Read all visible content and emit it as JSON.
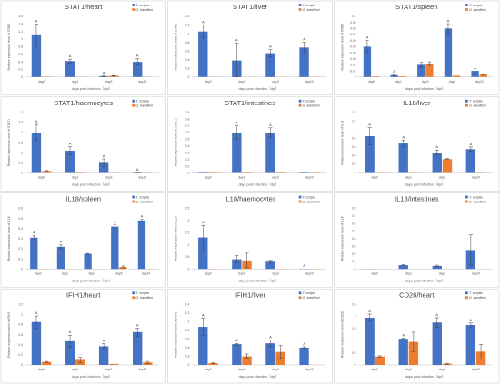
{
  "colors": [
    "#4472c4",
    "#ed7d31"
  ],
  "chart_data": [
    {
      "type": "bar",
      "title": "STAT1/heart",
      "categories": [
        "day0",
        "day1",
        "day3",
        "day10"
      ],
      "xlabel": "days post infection（dpi）",
      "ylabel": "Relative expression level of STAT1",
      "ylim": [
        0,
        1.6
      ],
      "ytick_step": 0.2,
      "grid": false,
      "legend": "top-right",
      "series": [
        {
          "name": "T. scripta",
          "values": [
            1.1,
            0.42,
            0.02,
            0.4
          ],
          "errors": [
            0.3,
            0.05,
            0.01,
            0.08
          ],
          "letters": [
            "A",
            "A",
            "A",
            "A"
          ]
        },
        {
          "name": "G. kamilinni",
          "values": [
            0.01,
            0.005,
            0.03,
            0.005
          ],
          "errors": [
            0,
            0,
            0.005,
            0
          ],
          "letters": [
            "",
            "",
            "",
            ""
          ]
        }
      ]
    },
    {
      "type": "bar",
      "title": "STAT1/liver",
      "categories": [
        "day0",
        "day1",
        "day3",
        "day10"
      ],
      "xlabel": "days post infection（dpi）",
      "ylabel": "Relative expression level of STAT1",
      "ylim": [
        0,
        1.4
      ],
      "ytick_step": 0.2,
      "grid": false,
      "legend": "top-right",
      "series": [
        {
          "name": "T. scripta",
          "values": [
            1.05,
            0.38,
            0.55,
            0.68
          ],
          "errors": [
            0.15,
            0.4,
            0.08,
            0.12
          ],
          "letters": [
            "A",
            "A",
            "A",
            "A"
          ]
        },
        {
          "name": "G. kamilinni",
          "values": [
            0.005,
            0.003,
            0.003,
            0.003
          ],
          "errors": [
            0,
            0,
            0,
            0
          ],
          "letters": [
            "",
            "",
            "",
            ""
          ]
        }
      ]
    },
    {
      "type": "bar",
      "title": "STAT1/spleen",
      "categories": [
        "day0",
        "day1",
        "day3",
        "day5",
        "day10"
      ],
      "xlabel": "days post infection（dpi）",
      "ylabel": "Relative expression level of STAT1",
      "ylim": [
        0,
        0.1
      ],
      "ytick_step": 0.01,
      "grid": false,
      "legend": "top-right",
      "series": [
        {
          "name": "T. scripta",
          "values": [
            0.05,
            0.003,
            0.02,
            0.08,
            0.01
          ],
          "errors": [
            0.01,
            0.001,
            0.004,
            0.008,
            0.004
          ],
          "letters": [
            "A",
            "A",
            "",
            "A",
            ""
          ]
        },
        {
          "name": "G. kamilinni",
          "values": [
            0.001,
            0.001,
            0.022,
            0.002,
            0.004
          ],
          "errors": [
            0,
            0,
            0.003,
            0,
            0.001
          ],
          "letters": [
            "",
            "",
            "",
            "",
            ""
          ]
        }
      ]
    },
    {
      "type": "bar",
      "title": "STAT1/haemocytes",
      "categories": [
        "day0",
        "day1",
        "day3",
        "day10"
      ],
      "xlabel": "days post infection（dpi）",
      "ylabel": "Relative expression level of STAT1",
      "ylim": [
        0,
        3
      ],
      "ytick_step": 0.5,
      "grid": false,
      "legend": "top-right",
      "series": [
        {
          "name": "T. scripta",
          "values": [
            2.0,
            1.1,
            0.5,
            0.02
          ],
          "errors": [
            0.4,
            0.2,
            0.2,
            0.01
          ],
          "letters": [
            "A",
            "A",
            "A",
            "A"
          ]
        },
        {
          "name": "G. kamilinni",
          "values": [
            0.1,
            0.02,
            0.01,
            0.01
          ],
          "errors": [
            0.02,
            0,
            0,
            0
          ],
          "letters": [
            "",
            "",
            "",
            ""
          ]
        }
      ]
    },
    {
      "type": "bar",
      "title": "STAT1/intestines",
      "categories": [
        "day0",
        "day1",
        "day3",
        "day10"
      ],
      "xlabel": "days post infection（dpi）",
      "ylabel": "Relative expression level of STAT1",
      "ylim": [
        0,
        0.9
      ],
      "ytick_step": 0.1,
      "grid": false,
      "legend": "top-right",
      "series": [
        {
          "name": "T. scripta",
          "values": [
            0.01,
            0.6,
            0.6,
            0.01
          ],
          "errors": [
            0,
            0.1,
            0.07,
            0
          ],
          "letters": [
            "",
            "A",
            "A",
            ""
          ]
        },
        {
          "name": "G. kamilinni",
          "values": [
            0.005,
            0.01,
            0.01,
            0.005
          ],
          "errors": [
            0,
            0,
            0,
            0
          ],
          "letters": [
            "",
            "",
            "",
            ""
          ]
        }
      ]
    },
    {
      "type": "bar",
      "title": "IL18/liver",
      "categories": [
        "day0",
        "day1",
        "day3",
        "day10"
      ],
      "xlabel": "days post infection（dpi）",
      "ylabel": "Relative expression level of IL18",
      "ylim": [
        0,
        1.4
      ],
      "ytick_step": 0.2,
      "grid": false,
      "legend": "top-right",
      "series": [
        {
          "name": "T. scripta",
          "values": [
            0.85,
            0.68,
            0.47,
            0.55
          ],
          "errors": [
            0.2,
            0.08,
            0.06,
            0.05
          ],
          "letters": [
            "A",
            "A",
            "A",
            "A"
          ]
        },
        {
          "name": "G. kamilinni",
          "values": [
            0.005,
            0.005,
            0.32,
            0.005
          ],
          "errors": [
            0,
            0,
            0.01,
            0
          ],
          "letters": [
            "",
            "",
            "",
            ""
          ]
        }
      ]
    },
    {
      "type": "bar",
      "title": "IL18/spleen",
      "categories": [
        "day0",
        "day1",
        "day3",
        "day5",
        "day10"
      ],
      "xlabel": "days post infection（dpi）",
      "ylabel": "Relative expression level of IL18",
      "ylim": [
        0,
        0.6
      ],
      "ytick_step": 0.1,
      "grid": false,
      "legend": "top-right",
      "series": [
        {
          "name": "T. scripta",
          "values": [
            0.31,
            0.22,
            0.15,
            0.42,
            0.48
          ],
          "errors": [
            0.02,
            0.02,
            0.005,
            0.02,
            0.01
          ],
          "letters": [
            "A",
            "A",
            "",
            "A",
            "A"
          ]
        },
        {
          "name": "G. kamilinni",
          "values": [
            0.002,
            0.002,
            0.002,
            0.02,
            0.002
          ],
          "errors": [
            0,
            0,
            0,
            0.01,
            0
          ],
          "letters": [
            "",
            "",
            "",
            "",
            ""
          ]
        }
      ]
    },
    {
      "type": "bar",
      "title": "IL18/haemocytes",
      "categories": [
        "day0",
        "day1",
        "day3",
        "day10"
      ],
      "xlabel": "days post infection（dpi）",
      "ylabel": "Relative expression level of IL18",
      "ylim": [
        0,
        2.5
      ],
      "ytick_step": 0.5,
      "grid": false,
      "legend": "top-right",
      "series": [
        {
          "name": "T. scripta",
          "values": [
            1.3,
            0.4,
            0.3,
            0.01
          ],
          "errors": [
            0.5,
            0.15,
            0.06,
            0
          ],
          "letters": [
            "A",
            "",
            "",
            "A"
          ]
        },
        {
          "name": "G. kamilinni",
          "values": [
            0.01,
            0.35,
            0.01,
            0.01
          ],
          "errors": [
            0,
            0.3,
            0,
            0
          ],
          "letters": [
            "",
            "",
            "",
            ""
          ]
        }
      ]
    },
    {
      "type": "bar",
      "title": "IL18/intestines",
      "categories": [
        "day0",
        "day1",
        "day3",
        "day10"
      ],
      "xlabel": "days post infection（dpi）",
      "ylabel": "Relative expression level of IL18",
      "ylim": [
        0,
        0.8
      ],
      "ytick_step": 0.1,
      "grid": false,
      "legend": "top-right",
      "series": [
        {
          "name": "T. scripta",
          "values": [
            0.002,
            0.05,
            0.04,
            0.25
          ],
          "errors": [
            0,
            0.01,
            0.01,
            0.2
          ],
          "letters": [
            "",
            "",
            "",
            ""
          ]
        },
        {
          "name": "G. kamilinni",
          "values": [
            0,
            0,
            0,
            0
          ],
          "errors": [
            0,
            0,
            0,
            0
          ],
          "letters": [
            "",
            "",
            "",
            ""
          ]
        }
      ]
    },
    {
      "type": "bar",
      "title": "IFIH1/heart",
      "categories": [
        "day0",
        "day1",
        "day3",
        "day10"
      ],
      "xlabel": "days post infection（dpi）",
      "ylabel": "Relative expression level of IFIH1",
      "ylim": [
        0,
        1.2
      ],
      "ytick_step": 0.2,
      "grid": false,
      "legend": "top-right",
      "series": [
        {
          "name": "T. scripta",
          "values": [
            0.85,
            0.47,
            0.37,
            0.65
          ],
          "errors": [
            0.12,
            0.12,
            0.05,
            0.08
          ],
          "letters": [
            "A",
            "A",
            "A",
            "A"
          ]
        },
        {
          "name": "G. kamilinni",
          "values": [
            0.06,
            0.1,
            0.02,
            0.05
          ],
          "errors": [
            0.01,
            0.05,
            0,
            0.02
          ],
          "letters": [
            "",
            "",
            "",
            ""
          ]
        }
      ]
    },
    {
      "type": "bar",
      "title": "IFIH1/liver",
      "categories": [
        "day0",
        "day1",
        "day3",
        "day10"
      ],
      "xlabel": "days post infection（dpi）",
      "ylabel": "Relative expression level of IFIH1",
      "ylim": [
        0,
        1.4
      ],
      "ytick_step": 0.2,
      "grid": false,
      "legend": "top-right",
      "series": [
        {
          "name": "T. scripta",
          "values": [
            0.88,
            0.48,
            0.5,
            0.4
          ],
          "errors": [
            0.2,
            0.02,
            0.08,
            0.02
          ],
          "letters": [
            "A",
            "A",
            "A",
            "A"
          ]
        },
        {
          "name": "G. kamilinni",
          "values": [
            0.04,
            0.2,
            0.3,
            0.003
          ],
          "errors": [
            0.01,
            0.05,
            0.15,
            0
          ],
          "letters": [
            "",
            "",
            "",
            ""
          ]
        }
      ]
    },
    {
      "type": "bar",
      "title": "CD28/heart",
      "categories": [
        "day0",
        "day1",
        "day3",
        "day10"
      ],
      "xlabel": "days post infection（dpi）",
      "ylabel": "Relative expression level of CD28",
      "ylim": [
        0,
        2.5
      ],
      "ytick_step": 0.5,
      "grid": false,
      "legend": "top-right",
      "series": [
        {
          "name": "T. scripta",
          "values": [
            1.95,
            1.08,
            1.75,
            1.65
          ],
          "errors": [
            0.15,
            0.03,
            0.2,
            0.08
          ],
          "letters": [
            "A",
            "A",
            "A",
            "A"
          ]
        },
        {
          "name": "G. kamilinni",
          "values": [
            0.35,
            0.95,
            0.05,
            0.55
          ],
          "errors": [
            0.03,
            0.4,
            0.02,
            0.3
          ],
          "letters": [
            "",
            "",
            "",
            ""
          ]
        }
      ]
    }
  ]
}
